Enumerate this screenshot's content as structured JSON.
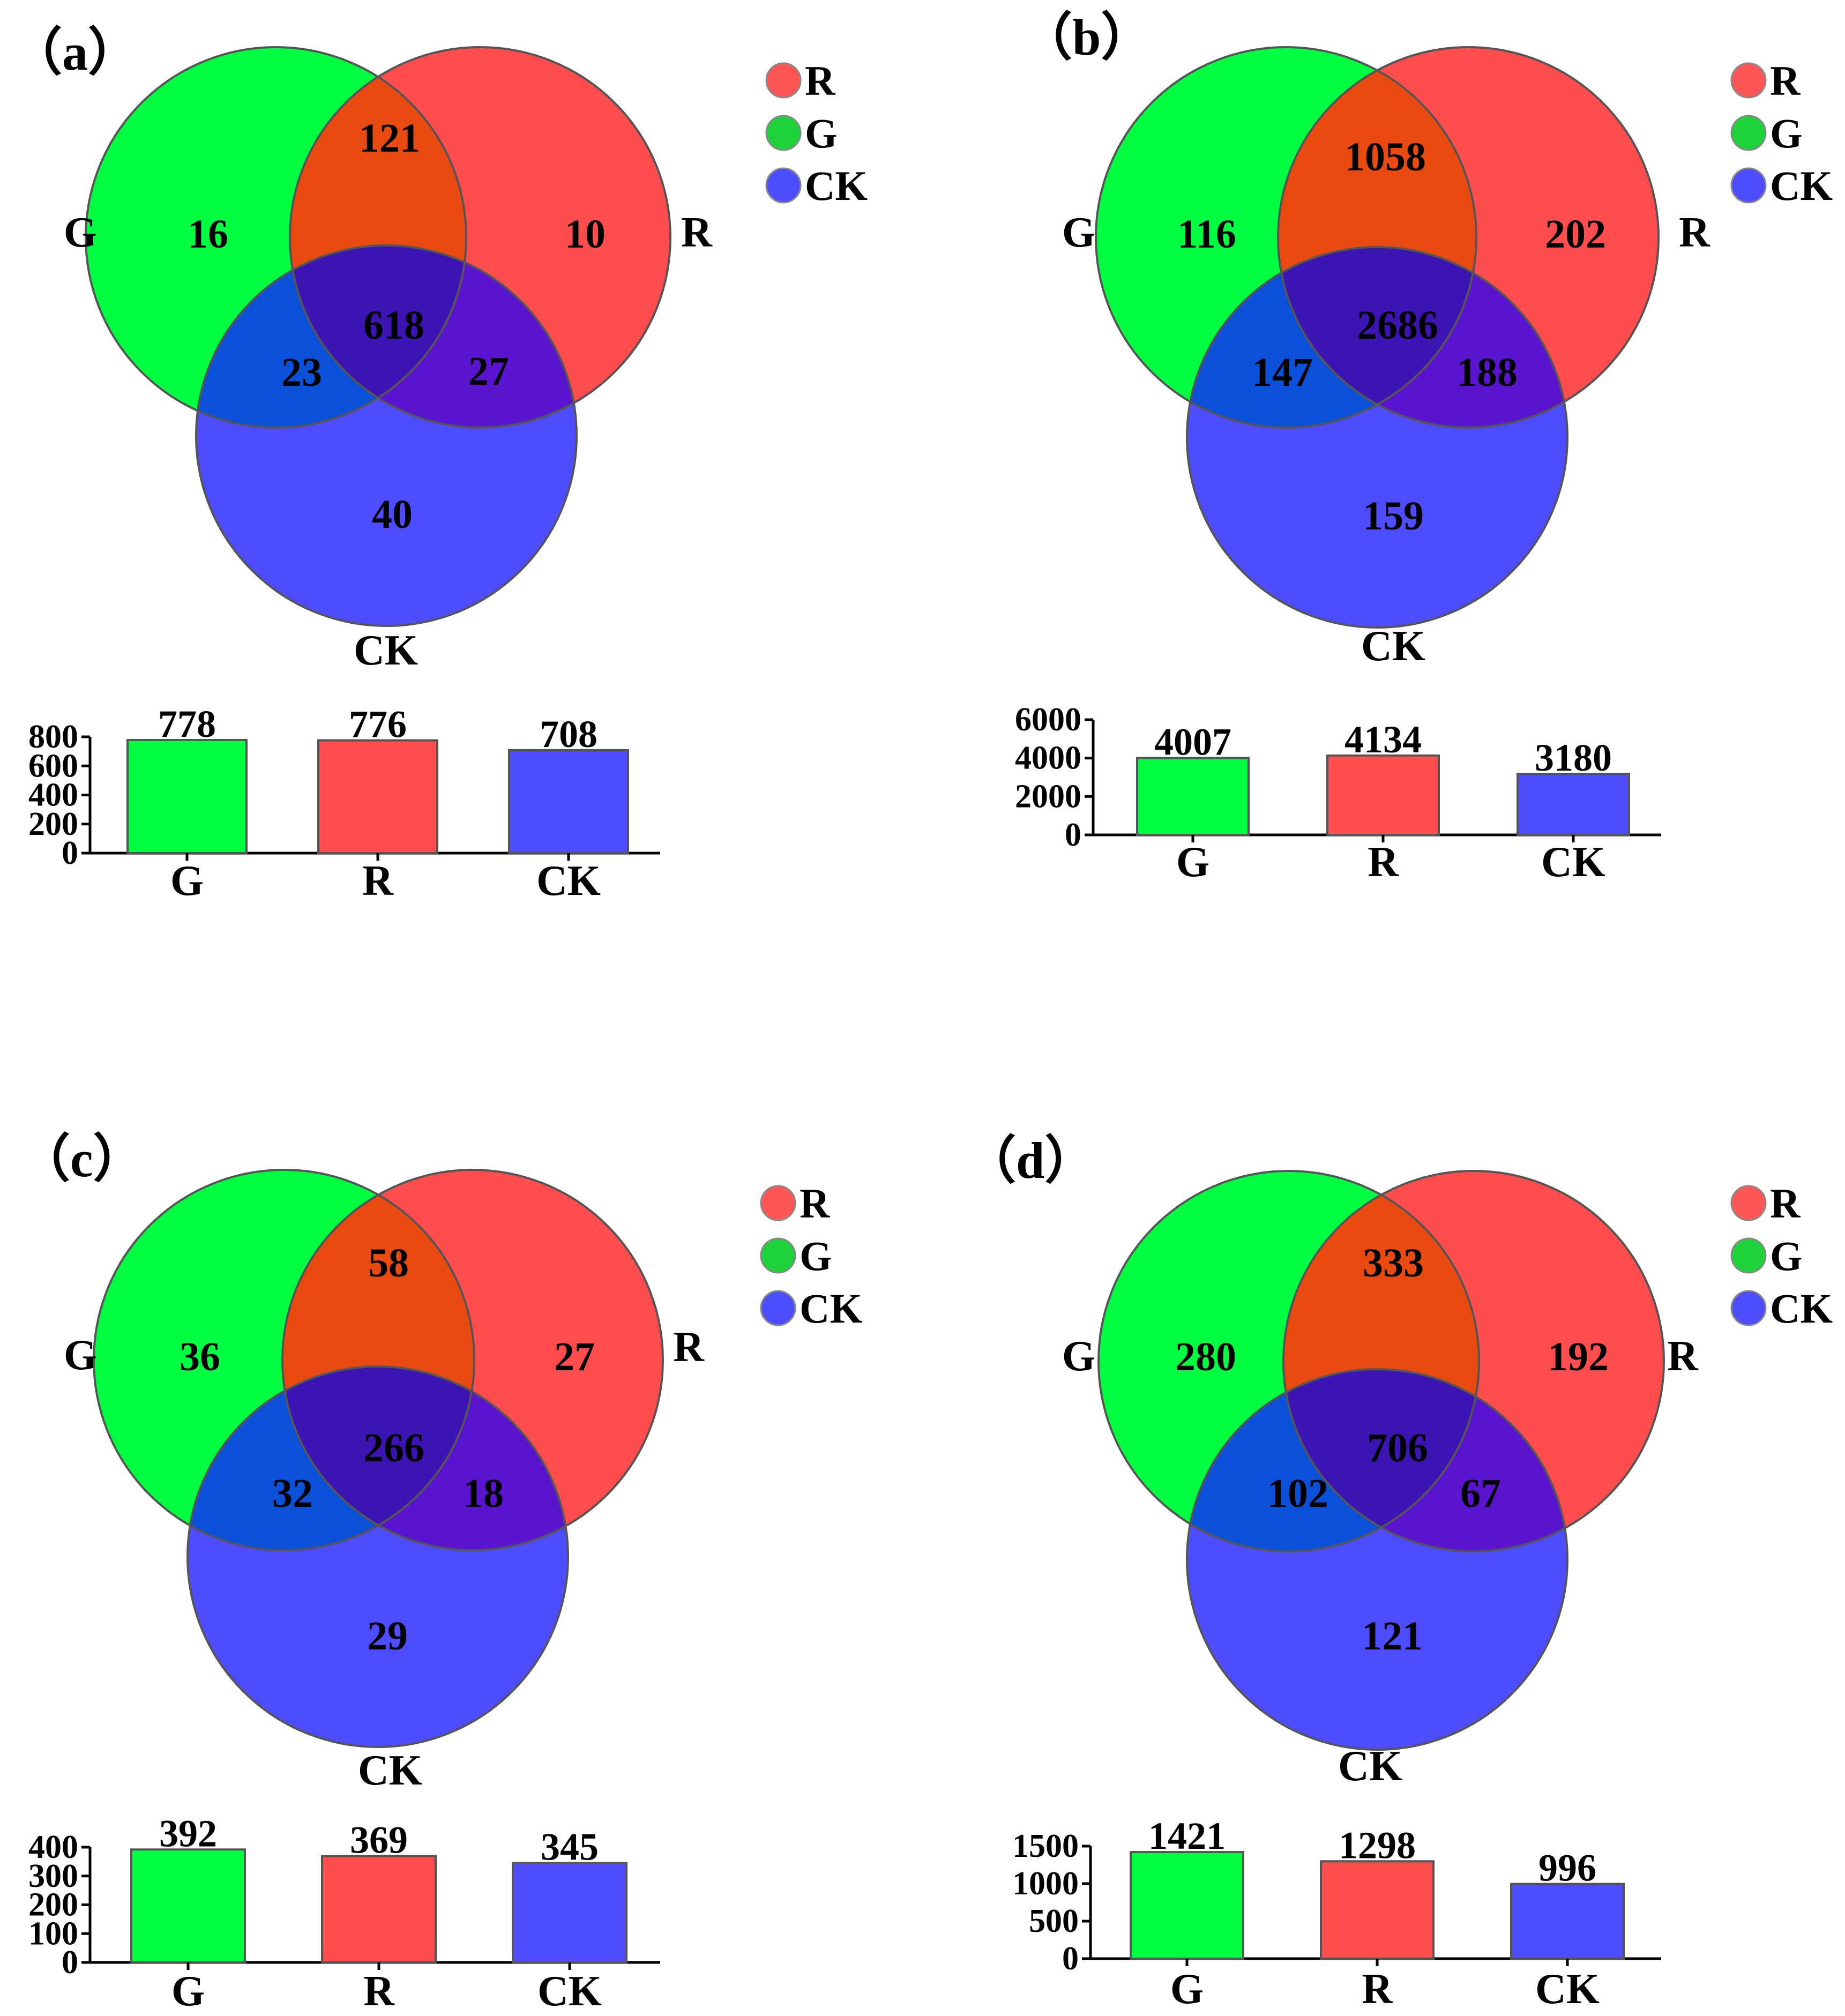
{
  "colors": {
    "G": "#00ff40",
    "R": "#ff4d4d",
    "CK": "#4d4dff",
    "legend_R": "#ff5555",
    "legend_G": "#1ed23a",
    "legend_CK": "#4d4dff",
    "circle_stroke": "#555555",
    "bar_stroke": "#555555",
    "axis": "#000000"
  },
  "chart_data": [
    {
      "panel_label": "（a）",
      "type": "venn3-with-bar",
      "venn": {
        "labels": {
          "G": "G",
          "R": "R",
          "CK": "CK"
        },
        "regions": {
          "G_only": "16",
          "R_only": "10",
          "CK_only": "40",
          "G_R": "121",
          "G_CK": "23",
          "R_CK": "27",
          "G_R_CK": "618"
        }
      },
      "legend": [
        "R",
        "G",
        "CK"
      ],
      "bar": {
        "type": "bar",
        "categories": [
          "G",
          "R",
          "CK"
        ],
        "values": [
          778,
          776,
          708
        ],
        "value_labels": [
          "778",
          "776",
          "708"
        ],
        "yticks": [
          "0",
          "200",
          "400",
          "600",
          "800"
        ],
        "ytick_values": [
          0,
          200,
          400,
          600,
          800
        ],
        "ylim": [
          0,
          800
        ]
      }
    },
    {
      "panel_label": "（b）",
      "type": "venn3-with-bar",
      "venn": {
        "labels": {
          "G": "G",
          "R": "R",
          "CK": "CK"
        },
        "regions": {
          "G_only": "116",
          "R_only": "202",
          "CK_only": "159",
          "G_R": "1058",
          "G_CK": "147",
          "R_CK": "188",
          "G_R_CK": "2686"
        }
      },
      "legend": [
        "R",
        "G",
        "CK"
      ],
      "bar": {
        "type": "bar",
        "categories": [
          "G",
          "R",
          "CK"
        ],
        "values": [
          4007,
          4134,
          3180
        ],
        "value_labels": [
          "4007",
          "4134",
          "3180"
        ],
        "yticks": [
          "0",
          "2000",
          "4000",
          "6000"
        ],
        "ytick_values": [
          0,
          2000,
          4000,
          6000
        ],
        "ylim": [
          0,
          6000
        ]
      }
    },
    {
      "panel_label": "（c）",
      "type": "venn3-with-bar",
      "venn": {
        "labels": {
          "G": "G",
          "R": "R",
          "CK": "CK"
        },
        "regions": {
          "G_only": "36",
          "R_only": "27",
          "CK_only": "29",
          "G_R": "58",
          "G_CK": "32",
          "R_CK": "18",
          "G_R_CK": "266"
        }
      },
      "legend": [
        "R",
        "G",
        "CK"
      ],
      "bar": {
        "type": "bar",
        "categories": [
          "G",
          "R",
          "CK"
        ],
        "values": [
          392,
          369,
          345
        ],
        "value_labels": [
          "392",
          "369",
          "345"
        ],
        "yticks": [
          "0",
          "100",
          "200",
          "300",
          "400"
        ],
        "ytick_values": [
          0,
          100,
          200,
          300,
          400
        ],
        "ylim": [
          0,
          400
        ]
      }
    },
    {
      "panel_label": "（d）",
      "type": "venn3-with-bar",
      "venn": {
        "labels": {
          "G": "G",
          "R": "R",
          "CK": "CK"
        },
        "regions": {
          "G_only": "280",
          "R_only": "192",
          "CK_only": "121",
          "G_R": "333",
          "G_CK": "102",
          "R_CK": "67",
          "G_R_CK": "706"
        }
      },
      "legend": [
        "R",
        "G",
        "CK"
      ],
      "bar": {
        "type": "bar",
        "categories": [
          "G",
          "R",
          "CK"
        ],
        "values": [
          1421,
          1298,
          996
        ],
        "value_labels": [
          "1421",
          "1298",
          "996"
        ],
        "yticks": [
          "0",
          "500",
          "1000",
          "1500"
        ],
        "ytick_values": [
          0,
          500,
          1000,
          1500
        ],
        "ylim": [
          0,
          1500
        ]
      }
    }
  ]
}
